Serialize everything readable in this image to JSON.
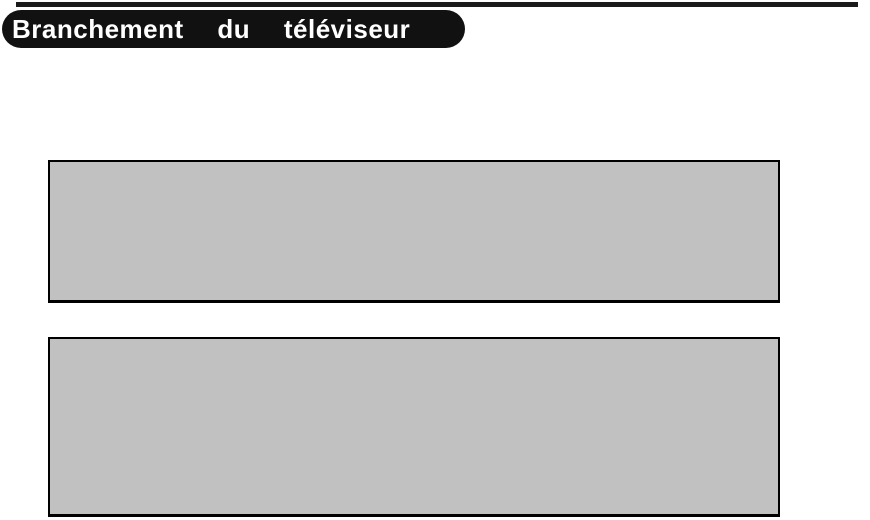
{
  "page": {
    "title": "Branchement du téléviseur"
  },
  "figures": {
    "count": 2,
    "description_1": "figure-placeholder-top",
    "description_2": "figure-placeholder-bottom"
  },
  "colors": {
    "banner_bg": "#111111",
    "banner_text": "#ffffff",
    "rule": "#1a1a1a",
    "figure_fill": "#c1c1c1",
    "figure_border": "#000000",
    "page_bg": "#ffffff"
  }
}
